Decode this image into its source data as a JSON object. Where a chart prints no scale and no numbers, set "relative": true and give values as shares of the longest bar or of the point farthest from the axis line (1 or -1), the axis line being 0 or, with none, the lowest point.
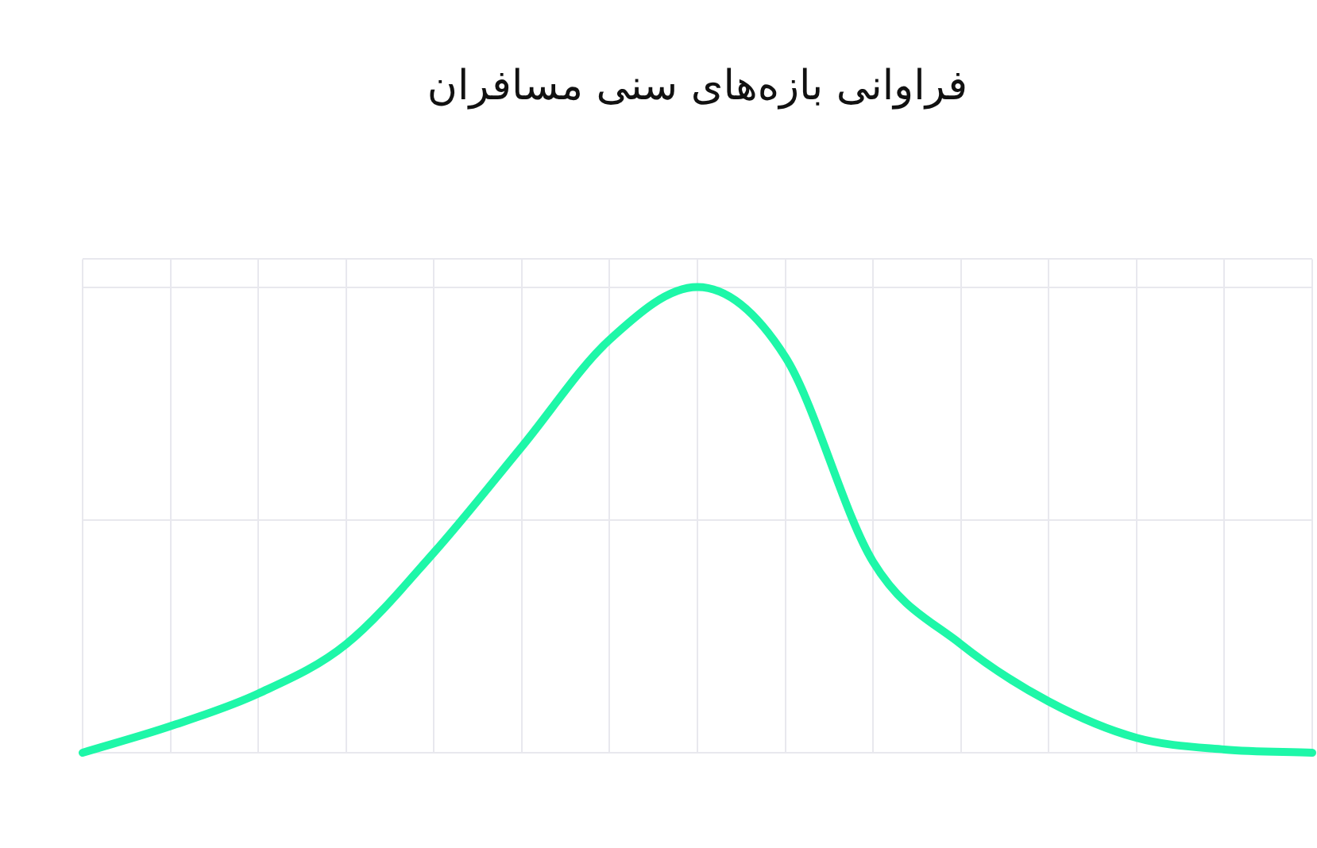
{
  "chart_data": {
    "type": "line",
    "title": "فراوانی بازه‌های سنی مسافران",
    "relative": true,
    "tick_labels": false,
    "grid": true,
    "legend": false,
    "marker": "none",
    "line_style": "solid",
    "categories": [
      null,
      null,
      null,
      null,
      null,
      null,
      null,
      null,
      null,
      null,
      null,
      null,
      null,
      null,
      null
    ],
    "series": [
      {
        "color": "#1ef7a8",
        "values": [
          0,
          0.057,
          0.127,
          0.233,
          0.43,
          0.657,
          0.887,
          1,
          0.85,
          0.41,
          0.233,
          0.11,
          0.032,
          0.007,
          0
        ]
      }
    ]
  }
}
